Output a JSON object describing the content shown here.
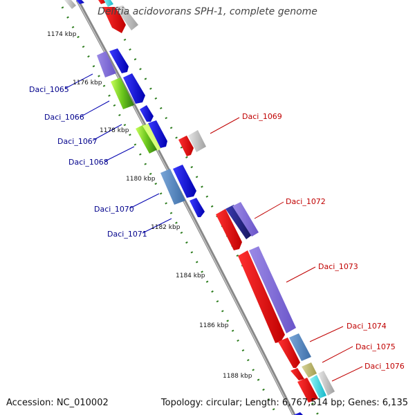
{
  "title": "Delftia acidovorans SPH-1, complete genome",
  "footer": {
    "accession": "Accession: NC_010002",
    "topology": "Topology: circular; Length: 6,767,514 bp; Genes: 6,135"
  },
  "kbp_ticks": [
    "1174 kbp",
    "1176 kbp",
    "1178 kbp",
    "1180 kbp",
    "1182 kbp",
    "1184 kbp",
    "1186 kbp",
    "1188 kbp"
  ],
  "forward_genes": [
    "Daci_1065",
    "Daci_1066",
    "Daci_1067",
    "Daci_1068",
    "Daci_1070",
    "Daci_1071"
  ],
  "reverse_genes": [
    "Daci_1069",
    "Daci_1072",
    "Daci_1073",
    "Daci_1074",
    "Daci_1075",
    "Daci_1076"
  ],
  "colors": {
    "label_forward": "#00008b",
    "label_reverse": "#c00000",
    "backbone": "#8a8a8a",
    "tick_dots": "#2e7d1f"
  }
}
